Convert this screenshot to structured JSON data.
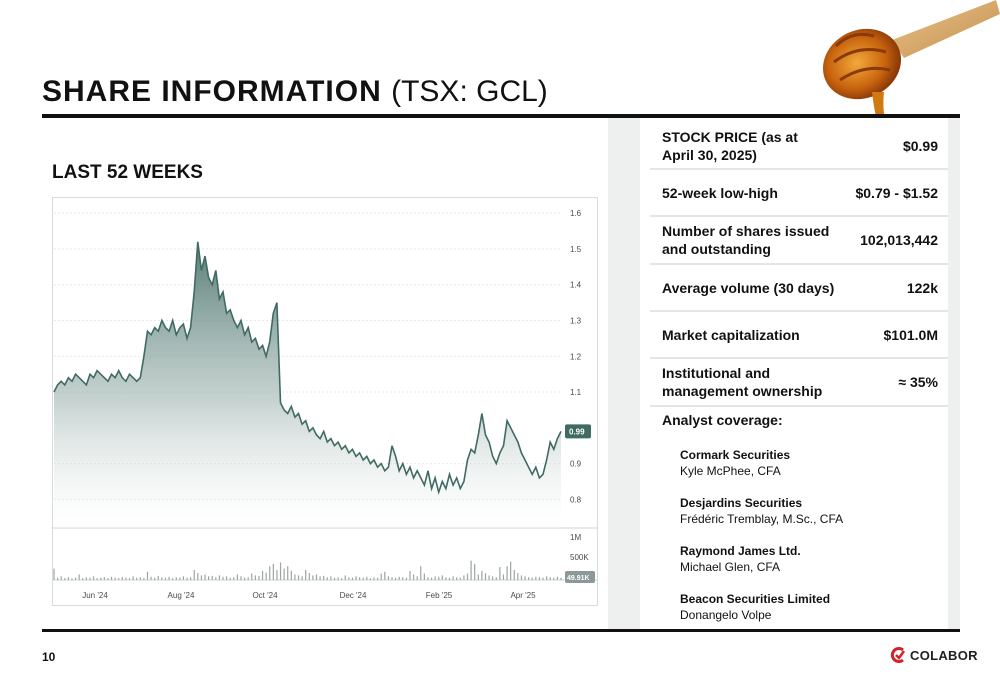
{
  "header": {
    "title_bold": "SHARE INFORMATION",
    "title_ticker": "(TSX: GCL)"
  },
  "chart_section": {
    "subtitle": "LAST 52 WEEKS"
  },
  "chart_data": {
    "type": "area",
    "title": "",
    "xlabel": "",
    "ylabel": "",
    "x_tick_labels": [
      "Jun '24",
      "Aug '24",
      "Oct '24",
      "Dec '24",
      "Feb '25",
      "Apr '25"
    ],
    "y_tick_labels": [
      "1.6",
      "1.5",
      "1.4",
      "1.3",
      "1.2",
      "1.1",
      "0.9",
      "0.8"
    ],
    "ylim": [
      0.72,
      1.62
    ],
    "last_price_label": "0.99",
    "series": [
      {
        "values": [
          1.1,
          1.12,
          1.13,
          1.12,
          1.14,
          1.13,
          1.15,
          1.14,
          1.13,
          1.12,
          1.15,
          1.14,
          1.16,
          1.15,
          1.14,
          1.13,
          1.15,
          1.14,
          1.16,
          1.14,
          1.13,
          1.15,
          1.14,
          1.13,
          1.14,
          1.2,
          1.27,
          1.26,
          1.28,
          1.27,
          1.3,
          1.28,
          1.27,
          1.3,
          1.26,
          1.28,
          1.29,
          1.25,
          1.28,
          1.38,
          1.52,
          1.44,
          1.48,
          1.42,
          1.4,
          1.44,
          1.36,
          1.38,
          1.32,
          1.33,
          1.3,
          1.28,
          1.3,
          1.26,
          1.28,
          1.24,
          1.25,
          1.22,
          1.23,
          1.2,
          1.24,
          1.32,
          1.35,
          1.07,
          1.05,
          1.04,
          1.06,
          1.03,
          1.04,
          1.01,
          1.02,
          0.99,
          1.0,
          0.98,
          0.97,
          0.99,
          0.96,
          0.97,
          0.95,
          0.96,
          0.94,
          0.95,
          0.93,
          0.94,
          0.92,
          0.93,
          0.91,
          0.92,
          0.9,
          0.91,
          0.89,
          0.9,
          0.88,
          0.89,
          0.95,
          0.92,
          0.88,
          0.9,
          0.87,
          0.89,
          0.86,
          0.88,
          0.86,
          0.84,
          0.88,
          0.83,
          0.86,
          0.82,
          0.85,
          0.83,
          0.87,
          0.84,
          0.86,
          0.83,
          0.85,
          0.91,
          0.94,
          0.93,
          0.98,
          1.04,
          0.98,
          0.96,
          0.92,
          0.9,
          0.93,
          0.95,
          1.02,
          1.0,
          0.98,
          0.96,
          0.93,
          0.91,
          0.89,
          0.87,
          0.89,
          0.86,
          0.87,
          0.91,
          0.96,
          0.94,
          0.97,
          0.99
        ]
      }
    ],
    "volume": {
      "y_tick_labels": [
        "1M",
        "500K"
      ],
      "last_volume_label": "49.91K",
      "values": [
        0.25,
        0.05,
        0.08,
        0.04,
        0.06,
        0.03,
        0.05,
        0.12,
        0.04,
        0.06,
        0.05,
        0.08,
        0.04,
        0.05,
        0.06,
        0.04,
        0.07,
        0.05,
        0.04,
        0.06,
        0.05,
        0.04,
        0.08,
        0.05,
        0.06,
        0.04,
        0.18,
        0.07,
        0.05,
        0.09,
        0.06,
        0.05,
        0.07,
        0.04,
        0.06,
        0.05,
        0.08,
        0.05,
        0.06,
        0.22,
        0.15,
        0.1,
        0.12,
        0.08,
        0.09,
        0.06,
        0.1,
        0.07,
        0.08,
        0.05,
        0.06,
        0.12,
        0.08,
        0.05,
        0.06,
        0.14,
        0.1,
        0.09,
        0.2,
        0.16,
        0.3,
        0.35,
        0.22,
        0.38,
        0.25,
        0.3,
        0.2,
        0.12,
        0.1,
        0.08,
        0.22,
        0.15,
        0.1,
        0.12,
        0.08,
        0.09,
        0.06,
        0.08,
        0.05,
        0.06,
        0.04,
        0.1,
        0.06,
        0.05,
        0.08,
        0.06,
        0.05,
        0.07,
        0.04,
        0.06,
        0.05,
        0.14,
        0.18,
        0.08,
        0.06,
        0.05,
        0.07,
        0.06,
        0.05,
        0.2,
        0.12,
        0.08,
        0.3,
        0.14,
        0.06,
        0.05,
        0.08,
        0.07,
        0.1,
        0.06,
        0.05,
        0.08,
        0.06,
        0.05,
        0.1,
        0.14,
        0.42,
        0.35,
        0.12,
        0.2,
        0.15,
        0.1,
        0.08,
        0.06,
        0.28,
        0.12,
        0.3,
        0.4,
        0.22,
        0.15,
        0.1,
        0.08,
        0.06,
        0.05,
        0.07,
        0.06,
        0.05,
        0.08,
        0.06,
        0.05,
        0.07,
        0.05
      ]
    }
  },
  "share_table": {
    "rows": [
      {
        "label": "STOCK PRICE (as at April 30, 2025)",
        "value": "$0.99"
      },
      {
        "label": "52-week low-high",
        "value": "$0.79 - $1.52"
      },
      {
        "label": "Number of shares issued and outstanding",
        "value": "102,013,442"
      },
      {
        "label": "Average volume (30 days)",
        "value": "122k"
      },
      {
        "label": "Market capitalization",
        "value": "$101.0M"
      },
      {
        "label": "Institutional and management ownership",
        "value": "≈ 35%"
      }
    ],
    "analyst_coverage_title": "Analyst coverage:",
    "analysts": [
      {
        "firm": "Cormark Securities",
        "analyst": "Kyle McPhee, CFA"
      },
      {
        "firm": "Desjardins Securities",
        "analyst": "Frédéric Tremblay, M.Sc., CFA"
      },
      {
        "firm": "Raymond James Ltd.",
        "analyst": "Michael Glen, CFA"
      },
      {
        "firm": "Beacon Securities Limited",
        "analyst": "Donangelo Volpe"
      }
    ]
  },
  "footer": {
    "page_number": "10",
    "logo_text": "COLABOR"
  },
  "colors": {
    "chart_line": "#3f6b63",
    "chart_fill_top": "#5a7f78",
    "badge": "#3f6b63",
    "rule": "#111111",
    "table_bg": "#eef0ef",
    "logo_red": "#d2232a"
  },
  "icons": {
    "logo_mark": "colabor-logo-icon",
    "decoration": "honey-dipper-icon"
  }
}
